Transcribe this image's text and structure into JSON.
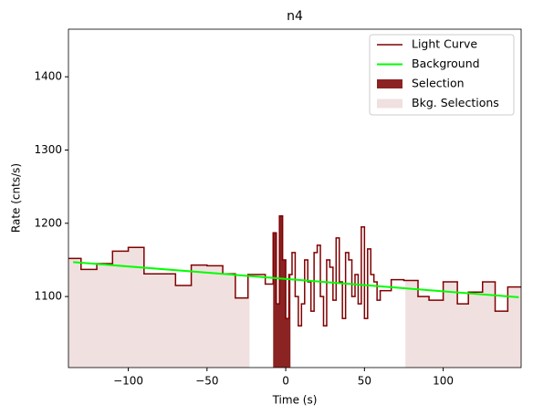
{
  "chart_data": {
    "type": "step",
    "title": "n4",
    "x_label": "Time (s)",
    "y_label": "Rate (cnts/s)",
    "xlim": [
      -138,
      149.5
    ],
    "ylim": [
      1003,
      1465
    ],
    "xticks": [
      {
        "value": -100,
        "label": "−100"
      },
      {
        "value": -50,
        "label": "−50"
      },
      0,
      50,
      100
    ],
    "yticks": [
      1100,
      1200,
      1300,
      1400
    ],
    "light_curve": {
      "name": "Light Curve",
      "color": "#7f0000",
      "bins": [
        -138,
        -130,
        -120,
        -110,
        -100,
        -90,
        -80,
        -70,
        -60,
        -50,
        -40,
        -32,
        -24,
        -13,
        -8,
        -6,
        -4,
        -2,
        0,
        2,
        4,
        6,
        8,
        10,
        12,
        14,
        16,
        18,
        20,
        22,
        24,
        26,
        28,
        30,
        32,
        34,
        36,
        38,
        40,
        42,
        44,
        46,
        48,
        50,
        52,
        54,
        56,
        58,
        60,
        67,
        75,
        84,
        91,
        100,
        109,
        116,
        125,
        133,
        141,
        149.5
      ],
      "values": [
        1152,
        1137,
        1145,
        1162,
        1167,
        1131,
        1131,
        1115,
        1143,
        1142,
        1131,
        1098,
        1130,
        1117,
        1187,
        1090,
        1210,
        1150,
        1070,
        1130,
        1160,
        1100,
        1060,
        1090,
        1150,
        1120,
        1080,
        1160,
        1170,
        1100,
        1060,
        1150,
        1140,
        1095,
        1180,
        1120,
        1070,
        1160,
        1150,
        1100,
        1130,
        1090,
        1195,
        1070,
        1165,
        1130,
        1120,
        1095,
        1108,
        1123,
        1122,
        1100,
        1095,
        1120,
        1090,
        1106,
        1120,
        1080,
        1113
      ]
    },
    "background": {
      "name": "Background",
      "color": "#00ff00",
      "x": [
        -135,
        148
      ],
      "values": [
        1147,
        1099
      ]
    },
    "selection": {
      "name": "Selection",
      "color": "#8b2323",
      "range": [
        -8,
        3
      ]
    },
    "bkg_selections": {
      "name": "Bkg. Selections",
      "color": "#f0e0e0",
      "ranges": [
        [
          -138,
          -23
        ],
        [
          76,
          149.5
        ]
      ]
    }
  }
}
